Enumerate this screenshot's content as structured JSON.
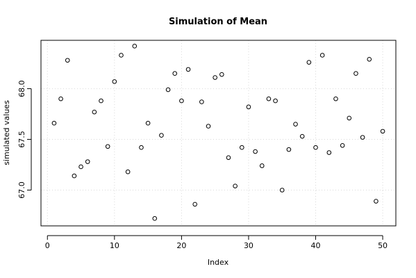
{
  "chart_data": {
    "type": "scatter",
    "title": "Simulation of Mean",
    "xlabel": "Index",
    "ylabel": "simulated values",
    "xlim": [
      -0.96,
      51.96
    ],
    "ylim": [
      66.647,
      68.477
    ],
    "xticks": [
      0,
      10,
      20,
      30,
      40,
      50
    ],
    "yticks": [
      67.0,
      67.5,
      68.0
    ],
    "ytick_labels": [
      "67.0",
      "67.5",
      "68.0"
    ],
    "grid": true,
    "x": [
      1,
      2,
      3,
      4,
      5,
      6,
      7,
      8,
      9,
      10,
      11,
      12,
      13,
      14,
      15,
      16,
      17,
      18,
      19,
      20,
      21,
      22,
      23,
      24,
      25,
      26,
      27,
      28,
      29,
      30,
      31,
      32,
      33,
      34,
      35,
      36,
      37,
      38,
      39,
      40,
      41,
      42,
      43,
      44,
      45,
      46,
      47,
      48,
      49,
      50
    ],
    "y": [
      67.66,
      67.9,
      68.28,
      67.14,
      67.23,
      67.28,
      67.77,
      67.88,
      67.43,
      68.07,
      68.33,
      67.18,
      68.42,
      67.42,
      67.66,
      66.72,
      67.54,
      67.99,
      68.15,
      67.88,
      68.19,
      66.86,
      67.87,
      67.63,
      68.11,
      68.14,
      67.32,
      67.04,
      67.42,
      67.82,
      67.38,
      67.24,
      67.9,
      67.88,
      67.0,
      67.4,
      67.65,
      67.53,
      68.26,
      67.42,
      68.33,
      67.37,
      67.9,
      67.44,
      67.71,
      68.15,
      67.52,
      68.29,
      66.89,
      67.58
    ]
  }
}
